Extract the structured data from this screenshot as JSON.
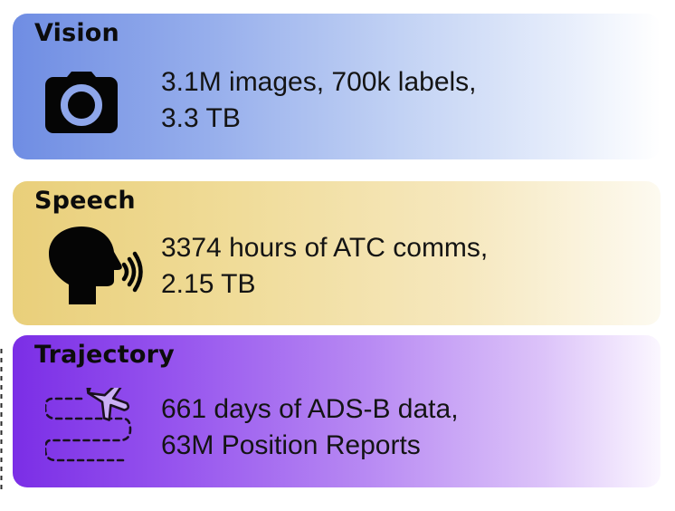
{
  "cards": [
    {
      "title": "Vision",
      "icon": "camera-icon",
      "lines": [
        "3.1M images, 700k labels,",
        "3.3 TB"
      ],
      "color": "#6f8de3"
    },
    {
      "title": "Speech",
      "icon": "speaking-head-icon",
      "lines": [
        "3374 hours of ATC comms,",
        "2.15 TB"
      ],
      "color": "#e9cf7a"
    },
    {
      "title": "Trajectory",
      "icon": "flight-path-icon",
      "lines": [
        "661 days of ADS-B data,",
        "63M Position Reports"
      ],
      "color": "#7b2ee6"
    }
  ]
}
